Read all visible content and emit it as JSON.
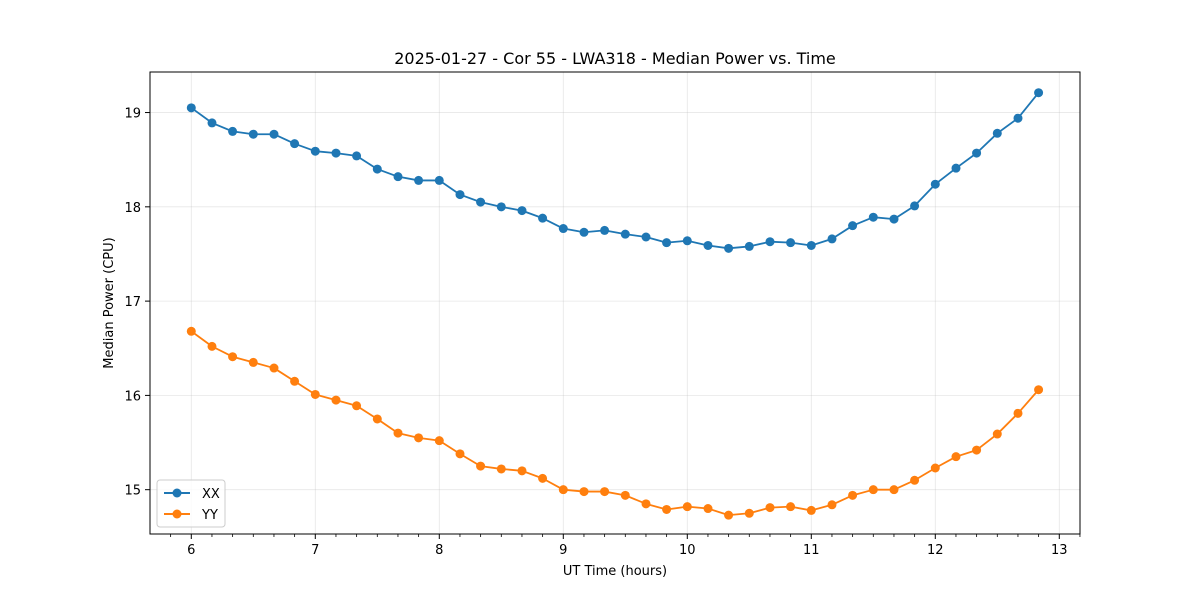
{
  "chart_data": {
    "type": "line",
    "title": "2025-01-27 - Cor 55 - LWA318 - Median Power vs. Time",
    "xlabel": "UT Time (hours)",
    "ylabel": "Median Power (CPU)",
    "xlim": [
      5.667,
      13.167
    ],
    "ylim": [
      14.53,
      19.43
    ],
    "xticks": [
      6,
      7,
      8,
      9,
      10,
      11,
      12,
      13
    ],
    "yticks": [
      15,
      16,
      17,
      18,
      19
    ],
    "xtick_labels": [
      "6",
      "7",
      "8",
      "9",
      "10",
      "11",
      "12",
      "13"
    ],
    "ytick_labels": [
      "15",
      "16",
      "17",
      "18",
      "19"
    ],
    "grid": true,
    "legend_position": "lower-left",
    "x": [
      6.0,
      6.167,
      6.333,
      6.5,
      6.667,
      6.833,
      7.0,
      7.167,
      7.333,
      7.5,
      7.667,
      7.833,
      8.0,
      8.167,
      8.333,
      8.5,
      8.667,
      8.833,
      9.0,
      9.167,
      9.333,
      9.5,
      9.667,
      9.833,
      10.0,
      10.167,
      10.333,
      10.5,
      10.667,
      10.833,
      11.0,
      11.167,
      11.333,
      11.5,
      11.667,
      11.833,
      12.0,
      12.167,
      12.333,
      12.5,
      12.667,
      12.833
    ],
    "series": [
      {
        "name": "XX",
        "color": "#1f77b4",
        "values": [
          19.05,
          18.89,
          18.8,
          18.77,
          18.77,
          18.67,
          18.59,
          18.57,
          18.54,
          18.4,
          18.32,
          18.28,
          18.28,
          18.13,
          18.05,
          18.0,
          17.96,
          17.88,
          17.77,
          17.73,
          17.75,
          17.71,
          17.68,
          17.62,
          17.64,
          17.59,
          17.56,
          17.58,
          17.63,
          17.62,
          17.59,
          17.66,
          17.8,
          17.89,
          17.87,
          18.01,
          18.24,
          18.41,
          18.57,
          18.78,
          18.94,
          19.21
        ]
      },
      {
        "name": "YY",
        "color": "#ff7f0e",
        "values": [
          16.68,
          16.52,
          16.41,
          16.35,
          16.29,
          16.15,
          16.01,
          15.95,
          15.89,
          15.75,
          15.6,
          15.55,
          15.52,
          15.38,
          15.25,
          15.22,
          15.2,
          15.12,
          15.0,
          14.98,
          14.98,
          14.94,
          14.85,
          14.79,
          14.82,
          14.8,
          14.73,
          14.75,
          14.81,
          14.82,
          14.78,
          14.84,
          14.94,
          15.0,
          15.0,
          15.1,
          15.23,
          15.35,
          15.42,
          15.59,
          15.81,
          16.06
        ]
      }
    ]
  }
}
